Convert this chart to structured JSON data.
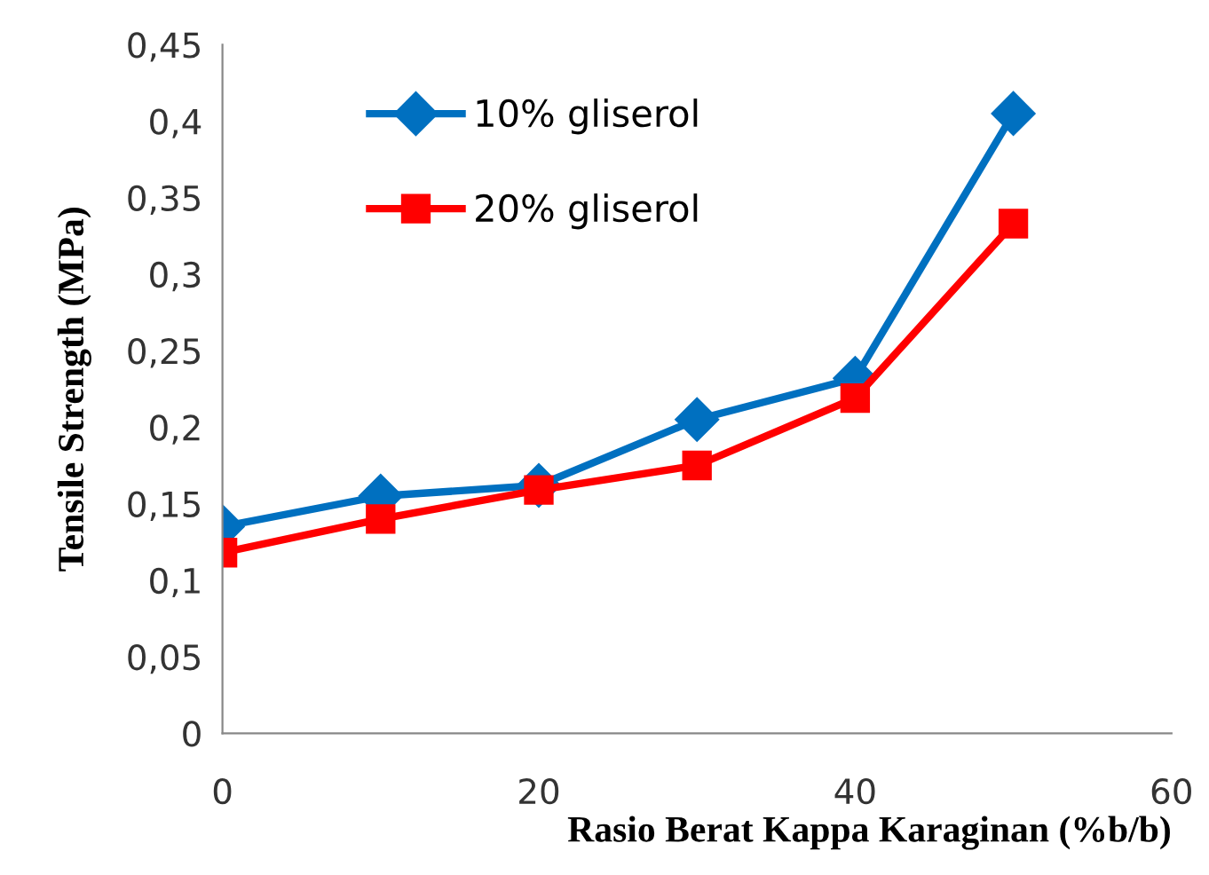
{
  "chart_data": {
    "type": "line",
    "xlabel": "Rasio Berat Kappa Karaginan (%b/b)",
    "ylabel": "Tensile Strength (MPa)",
    "x": [
      0,
      10,
      20,
      30,
      40,
      50
    ],
    "series": [
      {
        "name": "10% gliserol",
        "color": "#0070c0",
        "marker": "diamond",
        "values": [
          0.135,
          0.155,
          0.162,
          0.205,
          0.232,
          0.405
        ]
      },
      {
        "name": "20% gliserol",
        "color": "#ff0000",
        "marker": "square",
        "values": [
          0.118,
          0.14,
          0.159,
          0.175,
          0.219,
          0.333
        ]
      }
    ],
    "xlim": [
      0,
      60
    ],
    "xticks": [
      0,
      20,
      40,
      60
    ],
    "ylim": [
      0,
      0.45
    ],
    "yticks": [
      0,
      {
        "value": 0.05,
        "label": "0,05"
      },
      {
        "value": 0.1,
        "label": "0,1"
      },
      {
        "value": 0.15,
        "label": "0,15"
      },
      {
        "value": 0.2,
        "label": "0,2"
      },
      {
        "value": 0.25,
        "label": "0,25"
      },
      {
        "value": 0.3,
        "label": "0,3"
      },
      {
        "value": 0.35,
        "label": "0,35"
      },
      {
        "value": 0.4,
        "label": "0,4"
      },
      {
        "value": 0.45,
        "label": "0,45"
      }
    ],
    "grid": false,
    "legend": "top left",
    "line_style": "solid"
  }
}
